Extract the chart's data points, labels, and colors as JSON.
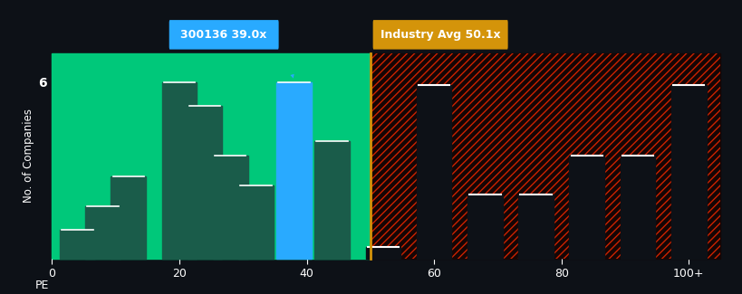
{
  "bg_color": "#0d1117",
  "left_bg": "#00c87a",
  "bar_color_green": "#1a5c4a",
  "bar_color_blue": "#29aaff",
  "hatch_color": "#cc2200",
  "right_bg_color": "#150505",
  "annotation_blue_bg": "#29aaff",
  "annotation_yellow_bg": "#d4940a",
  "industry_line_color": "#d4940a",
  "ylabel": "No. of Companies",
  "xlabel_prefix": "PE",
  "ytick_label": "6",
  "annotation1_text": "300136 39.0x",
  "annotation2_text": "Industry Avg 50.1x",
  "xtick_labels": [
    "0",
    "20",
    "40",
    "60",
    "80",
    "100+"
  ],
  "xtick_positions": [
    0,
    20,
    40,
    60,
    80,
    100
  ],
  "xlim": [
    0,
    105
  ],
  "ylim": [
    0,
    7.0
  ],
  "green_bars_x": [
    4,
    8,
    12,
    20,
    24,
    28,
    32,
    44
  ],
  "green_bars_heights": [
    1.0,
    1.8,
    2.8,
    6.0,
    5.2,
    3.5,
    2.5,
    4.0
  ],
  "blue_bar_x": 38,
  "blue_bar_height": 6.0,
  "right_bars_x": [
    52,
    60,
    68,
    76,
    84,
    92,
    100
  ],
  "right_bars_heights": [
    0.4,
    5.9,
    2.2,
    2.2,
    3.5,
    3.5,
    5.9
  ],
  "bar_width": 5.5,
  "industry_avg_x": 50,
  "white_line_color": "#ffffff"
}
